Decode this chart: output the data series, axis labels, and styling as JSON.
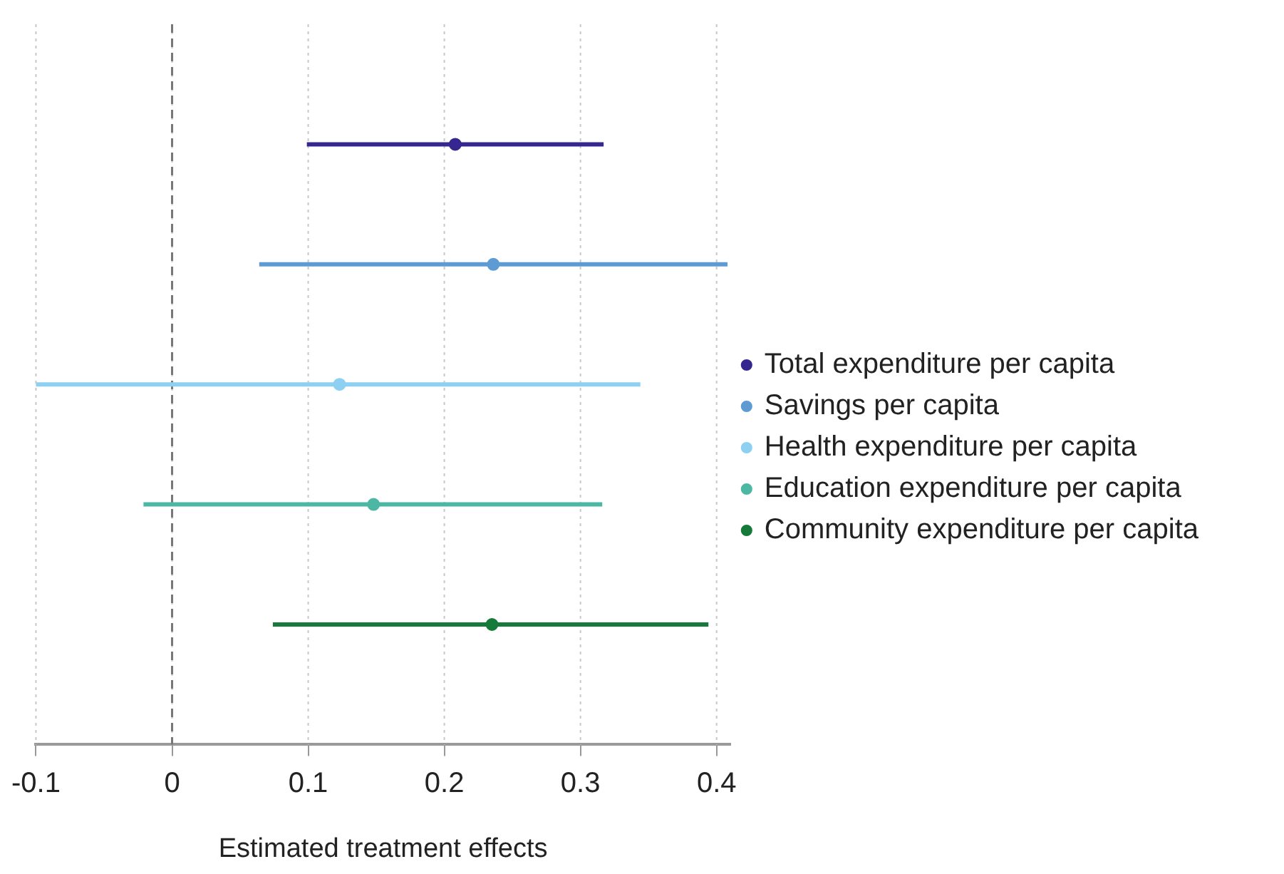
{
  "chart_data": {
    "type": "scatter",
    "orientation": "horizontal",
    "xlabel": "Estimated treatment effects",
    "categories": [
      null,
      null,
      null,
      null,
      null
    ],
    "series": [
      {
        "name": "Total expenditure per capita",
        "color": "#35278f",
        "values": [
          0.208,
          null,
          null,
          null,
          null
        ],
        "errors": [
          [
            0.099,
            0.317
          ],
          null,
          null,
          null,
          null
        ]
      },
      {
        "name": "Savings per capita",
        "color": "#5f9bd3",
        "values": [
          null,
          0.236,
          null,
          null,
          null
        ],
        "errors": [
          null,
          [
            0.064,
            0.408
          ],
          null,
          null,
          null
        ]
      },
      {
        "name": "Health expenditure per capita",
        "color": "#8dd0f2",
        "values": [
          null,
          null,
          0.123,
          null,
          null
        ],
        "errors": [
          null,
          null,
          [
            -0.1,
            0.344
          ],
          null,
          null
        ]
      },
      {
        "name": "Education expenditure per capita",
        "color": "#4cb8a4",
        "values": [
          null,
          null,
          null,
          0.148,
          null
        ],
        "errors": [
          null,
          null,
          null,
          [
            -0.021,
            0.316
          ],
          null
        ]
      },
      {
        "name": "Community expenditure per capita",
        "color": "#167a3a",
        "values": [
          null,
          null,
          null,
          null,
          0.235
        ],
        "errors": [
          null,
          null,
          null,
          null,
          [
            0.074,
            0.394
          ]
        ]
      }
    ],
    "xlim": [
      -0.1,
      0.41
    ],
    "xticks": [
      -0.1,
      0,
      0.1,
      0.2,
      0.3,
      0.4
    ],
    "grid": "x",
    "legend": "right",
    "marker": "circle",
    "ref_lines": [
      {
        "axis": "x",
        "value": 0,
        "color": "#777777",
        "line_style": "dashed"
      }
    ]
  }
}
